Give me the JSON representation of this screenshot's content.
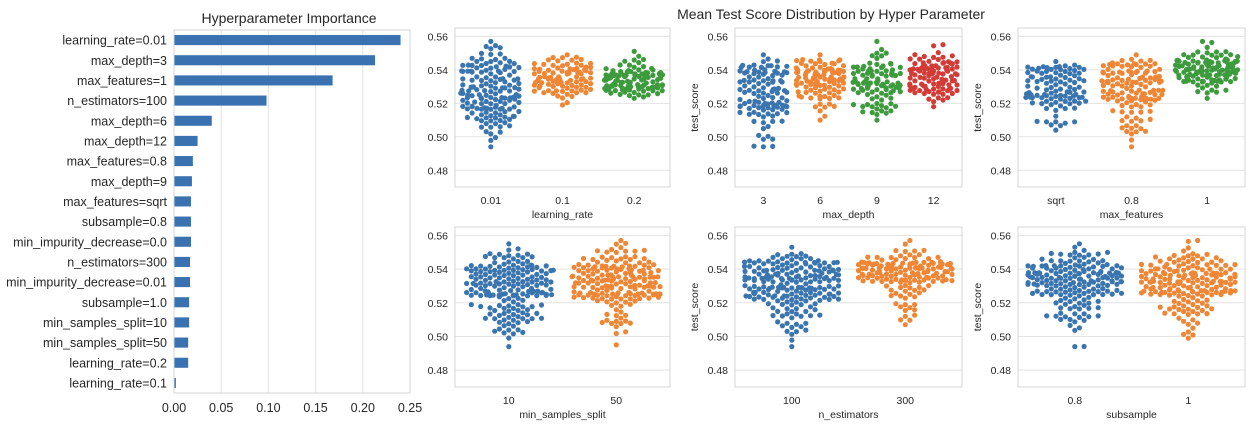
{
  "chart_data": [
    {
      "type": "bar",
      "orientation": "horizontal",
      "title": "Hyperparameter Importance",
      "categories": [
        "learning_rate=0.01",
        "max_depth=3",
        "max_features=1",
        "n_estimators=100",
        "max_depth=6",
        "max_depth=12",
        "max_features=0.8",
        "max_depth=9",
        "max_features=sqrt",
        "subsample=0.8",
        "min_impurity_decrease=0.0",
        "n_estimators=300",
        "min_impurity_decrease=0.01",
        "subsample=1.0",
        "min_samples_split=10",
        "min_samples_split=50",
        "learning_rate=0.2",
        "learning_rate=0.1"
      ],
      "values": [
        0.24,
        0.213,
        0.168,
        0.098,
        0.04,
        0.025,
        0.02,
        0.019,
        0.018,
        0.018,
        0.018,
        0.017,
        0.017,
        0.016,
        0.016,
        0.015,
        0.015,
        0.002
      ],
      "xlim": [
        0,
        0.25
      ],
      "xticks": [
        "0.00",
        "0.05",
        "0.10",
        "0.15",
        "0.20",
        "0.25"
      ],
      "color": "#3a71b0"
    },
    {
      "type": "swarm",
      "suptitle": "Mean Test Score Distribution by Hyper Parameter",
      "ylim": [
        0.47,
        0.565
      ],
      "yticks": [
        "0.48",
        "0.50",
        "0.52",
        "0.54",
        "0.56"
      ],
      "palette": [
        "#3a75b0",
        "#ee8636",
        "#3d9b3d",
        "#d33b37"
      ],
      "panels": [
        {
          "xlabel": "learning_rate",
          "ylabel": "",
          "categories": [
            "0.01",
            "0.1",
            "0.2"
          ],
          "groups": [
            {
              "min": 0.494,
              "max": 0.557,
              "q1": 0.518,
              "q3": 0.541,
              "n": 150
            },
            {
              "min": 0.519,
              "max": 0.549,
              "q1": 0.532,
              "q3": 0.542,
              "n": 90
            },
            {
              "min": 0.523,
              "max": 0.551,
              "q1": 0.53,
              "q3": 0.539,
              "n": 110
            }
          ]
        },
        {
          "xlabel": "max_depth",
          "ylabel": "test_score",
          "categories": [
            "3",
            "6",
            "9",
            "12"
          ],
          "groups": [
            {
              "min": 0.494,
              "max": 0.549,
              "q1": 0.518,
              "q3": 0.541,
              "n": 110
            },
            {
              "min": 0.51,
              "max": 0.549,
              "q1": 0.528,
              "q3": 0.541,
              "n": 100
            },
            {
              "min": 0.51,
              "max": 0.557,
              "q1": 0.528,
              "q3": 0.542,
              "n": 100
            },
            {
              "min": 0.518,
              "max": 0.555,
              "q1": 0.529,
              "q3": 0.543,
              "n": 100
            }
          ]
        },
        {
          "xlabel": "max_features",
          "ylabel": "test_score",
          "categories": [
            "sqrt",
            "0.8",
            "1"
          ],
          "groups": [
            {
              "min": 0.504,
              "max": 0.545,
              "q1": 0.522,
              "q3": 0.54,
              "n": 100
            },
            {
              "min": 0.494,
              "max": 0.549,
              "q1": 0.522,
              "q3": 0.542,
              "n": 130
            },
            {
              "min": 0.523,
              "max": 0.557,
              "q1": 0.536,
              "q3": 0.546,
              "n": 120
            }
          ]
        },
        {
          "xlabel": "min_samples_split",
          "ylabel": "",
          "categories": [
            "10",
            "50"
          ],
          "groups": [
            {
              "min": 0.494,
              "max": 0.555,
              "q1": 0.524,
              "q3": 0.542,
              "n": 180
            },
            {
              "min": 0.495,
              "max": 0.557,
              "q1": 0.524,
              "q3": 0.543,
              "n": 180
            }
          ]
        },
        {
          "xlabel": "n_estimators",
          "ylabel": "test_score",
          "categories": [
            "100",
            "300"
          ],
          "groups": [
            {
              "min": 0.494,
              "max": 0.553,
              "q1": 0.522,
              "q3": 0.541,
              "n": 200
            },
            {
              "min": 0.507,
              "max": 0.557,
              "q1": 0.532,
              "q3": 0.544,
              "n": 150
            }
          ]
        },
        {
          "xlabel": "subsample",
          "ylabel": "test_score",
          "categories": [
            "0.8",
            "1"
          ],
          "groups": [
            {
              "min": 0.494,
              "max": 0.555,
              "q1": 0.524,
              "q3": 0.542,
              "n": 180
            },
            {
              "min": 0.499,
              "max": 0.557,
              "q1": 0.524,
              "q3": 0.543,
              "n": 180
            }
          ]
        }
      ]
    }
  ]
}
